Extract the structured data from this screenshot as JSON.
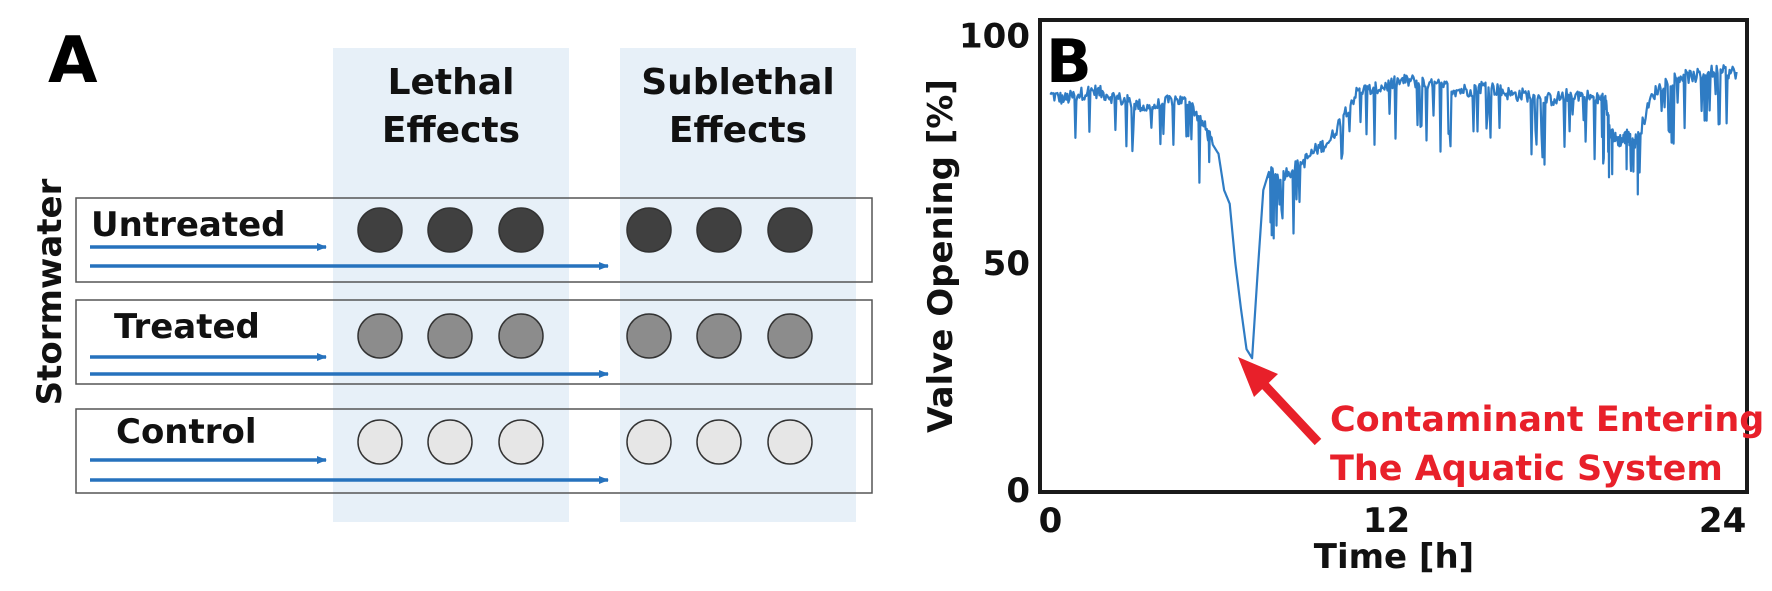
{
  "panel_a": {
    "panel_label": "A",
    "columns": [
      {
        "line1": "Lethal",
        "line2": "Effects"
      },
      {
        "line1": "Sublethal",
        "line2": "Effects"
      }
    ],
    "row_group_label": "Stormwater",
    "rows": [
      {
        "label": "Untreated",
        "color": "#404040"
      },
      {
        "label": "Treated",
        "color": "#8c8c8c"
      },
      {
        "label": "Control",
        "color": "#e6e6e6"
      }
    ],
    "colors": {
      "column_bg": "#e7f0f8",
      "arrow": "#2672bd",
      "row_border": "#555555"
    }
  },
  "panel_b": {
    "panel_label": "B",
    "annotation": {
      "line1": "Contaminant Entering",
      "line2": "The Aquatic System",
      "color": "#e8202a"
    },
    "chart_data": {
      "type": "line",
      "xlabel": "Time [h]",
      "ylabel": "Valve Opening [%]",
      "xlim": [
        -0.3,
        24.8
      ],
      "ylim": [
        0,
        103
      ],
      "xticks": [
        0,
        12,
        24
      ],
      "yticks": [
        0,
        50,
        100
      ],
      "grid": false,
      "line_color": "#2f7cc4",
      "series": [
        {
          "x": [
            0,
            0.5,
            1.0,
            1.5,
            2.0,
            2.5,
            3.0,
            3.5,
            4.0,
            4.5,
            5.0,
            5.5,
            5.8,
            6.0,
            6.2,
            6.4,
            6.6,
            6.8,
            7.0,
            7.2,
            7.4,
            7.6,
            7.8,
            8.0,
            8.5,
            9.0,
            9.5,
            10.0,
            10.5,
            11.0,
            11.5,
            12.0,
            12.5,
            13.0,
            13.5,
            14.0,
            14.5,
            15.0,
            15.5,
            16.0,
            16.5,
            17.0,
            17.5,
            18.0,
            18.5,
            19.0,
            19.5,
            19.8,
            20.0,
            20.2,
            20.4,
            20.6,
            20.8,
            21.0,
            21.5,
            22.0,
            22.5,
            23.0,
            23.5,
            24.0,
            24.5
          ],
          "y": [
            87,
            86,
            87,
            88,
            87,
            86,
            85,
            84,
            85,
            86,
            85,
            80,
            76,
            74,
            66,
            63,
            50,
            40,
            31,
            29,
            48,
            66,
            70,
            69,
            70,
            72,
            75,
            77,
            83,
            88,
            88,
            89,
            90,
            90,
            89,
            89,
            88,
            88,
            89,
            88,
            87,
            87,
            86,
            86,
            87,
            87,
            86,
            86,
            79,
            77,
            77,
            78,
            76,
            78,
            87,
            90,
            91,
            91,
            92,
            92,
            92
          ]
        }
      ]
    }
  }
}
